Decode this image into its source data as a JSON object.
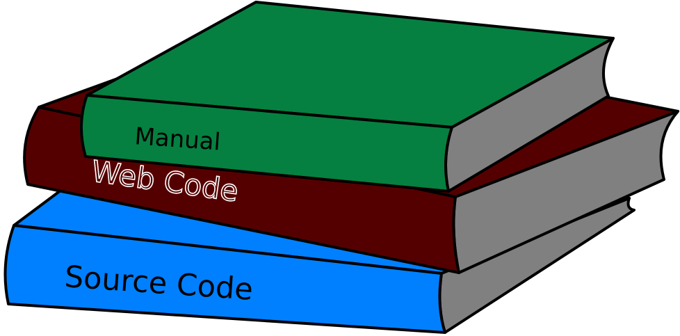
{
  "books": [
    {
      "id": "source",
      "label": "Source Code",
      "cover_color": "#0080ff",
      "pages_color": "#808080",
      "label_color": "#000000"
    },
    {
      "id": "web",
      "label": "Web Code",
      "cover_color": "#550000",
      "pages_color": "#808080",
      "label_color": "#550000",
      "label_outline_color": "#ffffff"
    },
    {
      "id": "manual",
      "label": "Manual",
      "cover_color": "#058040",
      "pages_color": "#808080",
      "label_color": "#000000"
    }
  ],
  "outline_color": "#000000"
}
